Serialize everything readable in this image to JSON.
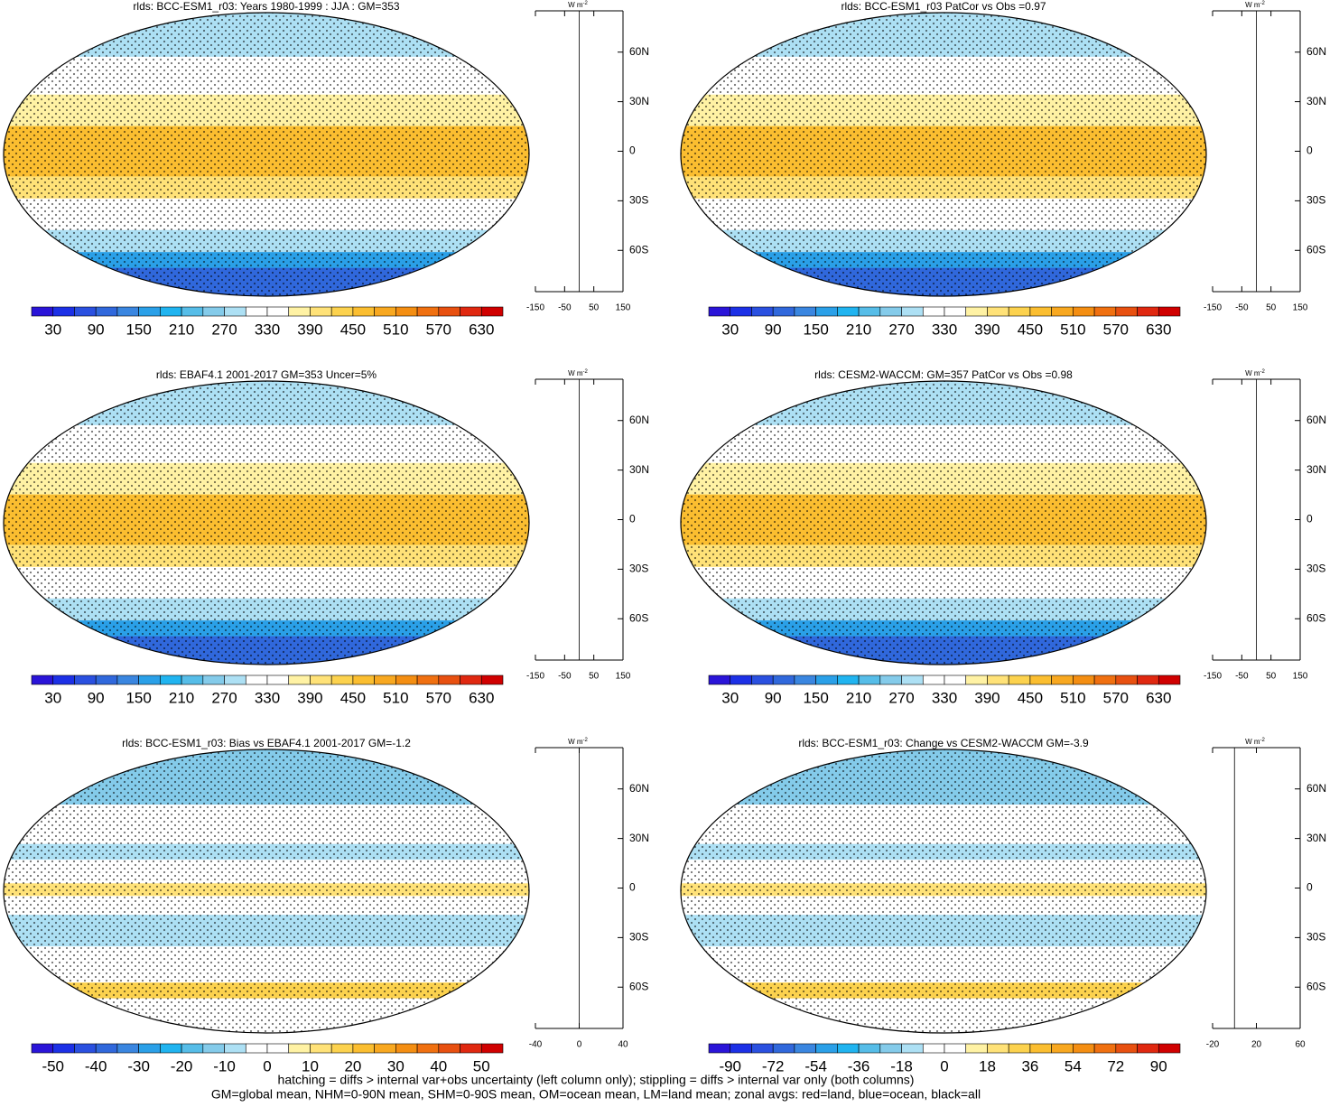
{
  "panels": [
    {
      "title": "rlds: BCC-ESM1_r03: Years 1980-1999 : JJA : GM=353",
      "colorbar_labels": [
        30,
        90,
        150,
        210,
        270,
        330,
        390,
        450,
        510,
        570,
        630
      ],
      "zonal": {
        "units": "W m",
        "units_exp": "-2",
        "xlim": [
          -150,
          150
        ],
        "xticks": [
          -150,
          -50,
          50,
          150
        ],
        "ylim": [
          -85,
          85
        ],
        "yticks": [
          {
            "value": 60,
            "label": "60N"
          },
          {
            "value": 30,
            "label": "30N"
          },
          0,
          {
            "value": -30,
            "label": "30S"
          },
          {
            "value": -60,
            "label": "60S"
          }
        ]
      }
    },
    {
      "title": "rlds: BCC-ESM1_r03 PatCor vs Obs =0.97",
      "colorbar_labels": [
        30,
        90,
        150,
        210,
        270,
        330,
        390,
        450,
        510,
        570,
        630
      ],
      "zonal": {
        "units": "W m",
        "units_exp": "-2",
        "xlim": [
          -150,
          150
        ],
        "xticks": [
          -150,
          -50,
          50,
          150
        ],
        "ylim": [
          -85,
          85
        ],
        "yticks": [
          {
            "value": 60,
            "label": "60N"
          },
          {
            "value": 30,
            "label": "30N"
          },
          0,
          {
            "value": -30,
            "label": "30S"
          },
          {
            "value": -60,
            "label": "60S"
          }
        ]
      }
    },
    {
      "title": "rlds: EBAF4.1 2001-2017 GM=353 Uncer=5%",
      "colorbar_labels": [
        30,
        90,
        150,
        210,
        270,
        330,
        390,
        450,
        510,
        570,
        630
      ],
      "zonal": {
        "units": "W m",
        "units_exp": "-2",
        "xlim": [
          -150,
          150
        ],
        "xticks": [
          -150,
          -50,
          50,
          150
        ],
        "ylim": [
          -85,
          85
        ],
        "yticks": [
          {
            "value": 60,
            "label": "60N"
          },
          {
            "value": 30,
            "label": "30N"
          },
          0,
          {
            "value": -30,
            "label": "30S"
          },
          {
            "value": -60,
            "label": "60S"
          }
        ]
      }
    },
    {
      "title": "rlds: CESM2-WACCM: GM=357 PatCor vs Obs =0.98",
      "colorbar_labels": [
        30,
        90,
        150,
        210,
        270,
        330,
        390,
        450,
        510,
        570,
        630
      ],
      "zonal": {
        "units": "W m",
        "units_exp": "-2",
        "xlim": [
          -150,
          150
        ],
        "xticks": [
          -150,
          -50,
          50,
          150
        ],
        "ylim": [
          -85,
          85
        ],
        "yticks": [
          {
            "value": 60,
            "label": "60N"
          },
          {
            "value": 30,
            "label": "30N"
          },
          0,
          {
            "value": -30,
            "label": "30S"
          },
          {
            "value": -60,
            "label": "60S"
          }
        ]
      }
    },
    {
      "title": "rlds: BCC-ESM1_r03: Bias vs EBAF4.1 2001-2017 GM=-1.2",
      "colorbar_labels": [
        -50,
        -40,
        -30,
        -20,
        -10,
        0,
        10,
        20,
        30,
        40,
        50
      ],
      "zonal": {
        "units": "W m",
        "units_exp": "-2",
        "xlim": [
          -40,
          40
        ],
        "xticks": [
          -40,
          0,
          40
        ],
        "ylim": [
          -85,
          85
        ],
        "yticks": [
          {
            "value": 60,
            "label": "60N"
          },
          {
            "value": 30,
            "label": "30N"
          },
          0,
          {
            "value": -30,
            "label": "30S"
          },
          {
            "value": -60,
            "label": "60S"
          }
        ]
      }
    },
    {
      "title": "rlds: BCC-ESM1_r03: Change vs CESM2-WACCM GM=-3.9",
      "colorbar_labels": [
        -90,
        -72,
        -54,
        -36,
        -18,
        0,
        18,
        36,
        54,
        72,
        90
      ],
      "zonal": {
        "units": "W m",
        "units_exp": "-2",
        "xlim": [
          -20,
          60
        ],
        "xticks": [
          -20,
          20,
          60
        ],
        "ylim": [
          -85,
          85
        ],
        "yticks": [
          {
            "value": 60,
            "label": "60N"
          },
          {
            "value": 30,
            "label": "30N"
          },
          0,
          {
            "value": -30,
            "label": "30S"
          },
          {
            "value": -60,
            "label": "60S"
          }
        ]
      }
    }
  ],
  "colorbar_colors": [
    "#2a14d8",
    "#1c30e6",
    "#2a50e0",
    "#3068dc",
    "#3a86e0",
    "#2aa0e8",
    "#20b4f0",
    "#56bde8",
    "#84cbea",
    "#ade0f4",
    "#ffffff",
    "#ffffff",
    "#fff2a4",
    "#ffe278",
    "#fcd24e",
    "#fbbe30",
    "#f8a820",
    "#f48e12",
    "#f07010",
    "#e85010",
    "#e02810",
    "#d00000"
  ],
  "footer": [
    "hatching = diffs > internal var+obs uncertainty (left column only); stippling = diffs > internal var only (both columns)",
    "GM=global mean, NHM=0-90N mean, SHM=0-90S mean, OM=ocean mean, LM=land mean; zonal avgs: red=land, blue=ocean, black=all"
  ]
}
